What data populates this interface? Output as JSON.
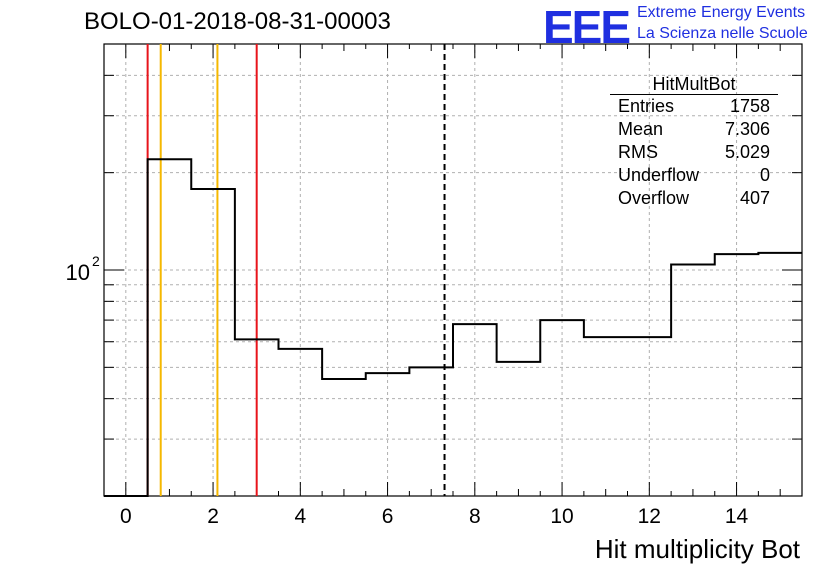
{
  "title": "BOLO-01-2018-08-31-00003",
  "logo": {
    "mark": "EEE",
    "line1": "Extreme Energy Events",
    "line2": "La Scienza nelle Scuole",
    "color": "#1f2fe0"
  },
  "stats": {
    "name": "HitMultBot",
    "rows": [
      {
        "label": "Entries",
        "value": "1758"
      },
      {
        "label": "Mean",
        "value": "7.306"
      },
      {
        "label": "RMS",
        "value": "5.029"
      },
      {
        "label": "Underflow",
        "value": "0"
      },
      {
        "label": "Overflow",
        "value": "407"
      }
    ]
  },
  "chart_data": {
    "type": "histogram",
    "title": "BOLO-01-2018-08-31-00003",
    "xlabel": "Hit multiplicity Bot",
    "ylabel": "",
    "xlim": [
      -0.5,
      15.5
    ],
    "ylim": [
      20,
      500
    ],
    "log_y": true,
    "grid": true,
    "x_ticks": [
      0,
      2,
      4,
      6,
      8,
      10,
      12,
      14
    ],
    "y_tick_labels": [
      {
        "value": 100,
        "label": "10",
        "exp": "2"
      }
    ],
    "bins": [
      {
        "x0": -0.5,
        "x1": 0.5,
        "value": 0
      },
      {
        "x0": 0.5,
        "x1": 1.5,
        "value": 220
      },
      {
        "x0": 1.5,
        "x1": 2.5,
        "value": 178
      },
      {
        "x0": 2.5,
        "x1": 3.5,
        "value": 61
      },
      {
        "x0": 3.5,
        "x1": 4.5,
        "value": 57
      },
      {
        "x0": 4.5,
        "x1": 5.5,
        "value": 46
      },
      {
        "x0": 5.5,
        "x1": 6.5,
        "value": 48
      },
      {
        "x0": 6.5,
        "x1": 7.5,
        "value": 50
      },
      {
        "x0": 7.5,
        "x1": 8.5,
        "value": 68
      },
      {
        "x0": 8.5,
        "x1": 9.5,
        "value": 52
      },
      {
        "x0": 9.5,
        "x1": 10.5,
        "value": 70
      },
      {
        "x0": 10.5,
        "x1": 12.5,
        "value": 62
      },
      {
        "x0": 12.5,
        "x1": 13.5,
        "value": 104
      },
      {
        "x0": 13.5,
        "x1": 14.5,
        "value": 112
      },
      {
        "x0": 14.5,
        "x1": 15.5,
        "value": 113
      }
    ],
    "markers": [
      {
        "x": 0.5,
        "color": "#e8141b",
        "style": "solid"
      },
      {
        "x": 0.8,
        "color": "#f5b800",
        "style": "solid"
      },
      {
        "x": 2.1,
        "color": "#f5b800",
        "style": "solid"
      },
      {
        "x": 3.0,
        "color": "#e8141b",
        "style": "solid"
      },
      {
        "x": 7.306,
        "color": "#000000",
        "style": "dashed"
      }
    ]
  }
}
